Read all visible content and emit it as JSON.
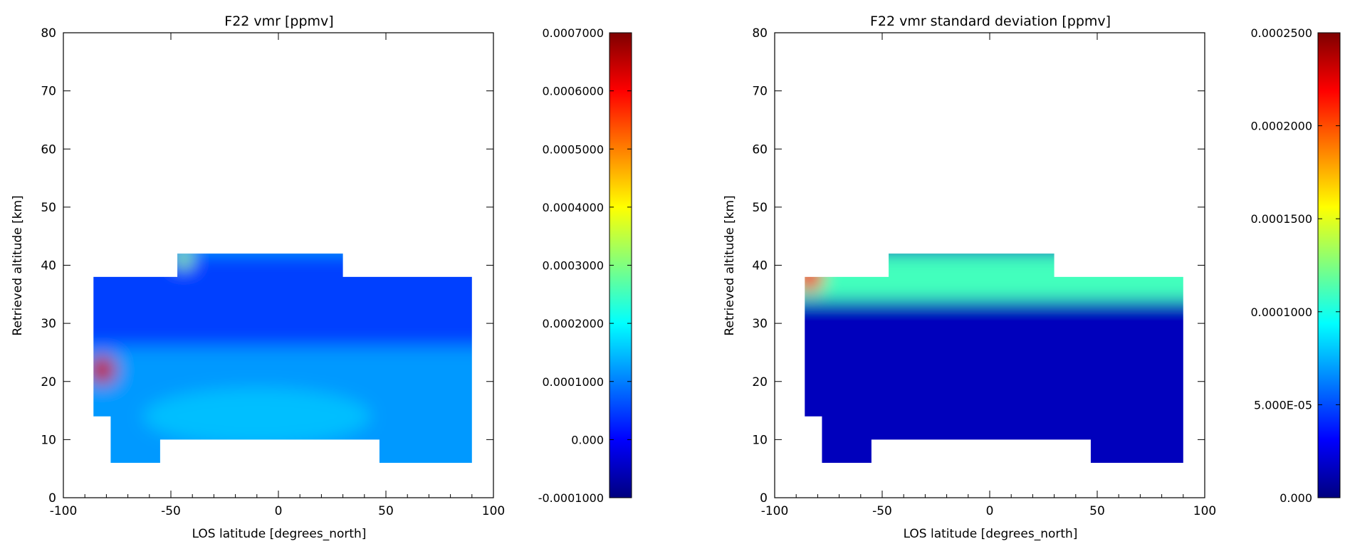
{
  "chart_data": [
    {
      "type": "heatmap",
      "title": "F22 vmr [ppmv]",
      "xlabel": "LOS latitude [degrees_north]",
      "ylabel": "Retrieved altitude [km]",
      "xlim": [
        -100,
        100
      ],
      "ylim": [
        0,
        80
      ],
      "x_ticks": [
        "-100",
        "-50",
        "0",
        "50",
        "100"
      ],
      "y_ticks": [
        "0",
        "10",
        "20",
        "30",
        "40",
        "50",
        "60",
        "70",
        "80"
      ],
      "colorbar": {
        "range": [
          -0.0001,
          0.0007
        ],
        "tick_values": [
          -0.0001,
          0.0,
          0.0001,
          0.0002,
          0.0003,
          0.0004,
          0.0005,
          0.0006,
          0.0007
        ],
        "tick_labels": [
          "-0.0001000",
          "0.000",
          "0.0001000",
          "0.0002000",
          "0.0003000",
          "0.0004000",
          "0.0005000",
          "0.0006000",
          "0.0007000"
        ]
      },
      "data_coverage": [
        {
          "lat_range": [
            -86,
            -78
          ],
          "alt_range": [
            14,
            38
          ]
        },
        {
          "lat_range": [
            -78,
            -55
          ],
          "alt_range": [
            6,
            38
          ]
        },
        {
          "lat_range": [
            -55,
            -47
          ],
          "alt_range": [
            10,
            38
          ]
        },
        {
          "lat_range": [
            -47,
            30
          ],
          "alt_range": [
            10,
            42
          ]
        },
        {
          "lat_range": [
            30,
            47
          ],
          "alt_range": [
            10,
            38
          ]
        },
        {
          "lat_range": [
            47,
            90
          ],
          "alt_range": [
            6,
            38
          ]
        }
      ],
      "features": [
        {
          "name": "background",
          "value": 0.00012
        },
        {
          "name": "upper-layer",
          "alt_range": [
            26,
            42
          ],
          "value": 5e-05
        },
        {
          "name": "lower-enhancement",
          "lat": -10,
          "alt": 14,
          "value": 0.00015
        },
        {
          "name": "hotspot",
          "lat": -82,
          "alt": 22,
          "value": 0.00065
        },
        {
          "name": "edge-high",
          "lat": -44,
          "alt": 41,
          "value": 0.00032
        }
      ]
    },
    {
      "type": "heatmap",
      "title": "F22 vmr standard deviation [ppmv]",
      "xlabel": "LOS latitude [degrees_north]",
      "ylabel": "Retrieved altitude [km]",
      "xlim": [
        -100,
        100
      ],
      "ylim": [
        0,
        80
      ],
      "x_ticks": [
        "-100",
        "-50",
        "0",
        "50",
        "100"
      ],
      "y_ticks": [
        "0",
        "10",
        "20",
        "30",
        "40",
        "50",
        "60",
        "70",
        "80"
      ],
      "colorbar": {
        "range": [
          0.0,
          0.00025
        ],
        "tick_values": [
          0.0,
          5e-05,
          0.0001,
          0.00015,
          0.0002,
          0.00025
        ],
        "tick_labels": [
          "0.000",
          "5.000E-05",
          "0.0001000",
          "0.0001500",
          "0.0002000",
          "0.0002500"
        ]
      },
      "data_coverage": [
        {
          "lat_range": [
            -86,
            -78
          ],
          "alt_range": [
            14,
            38
          ]
        },
        {
          "lat_range": [
            -78,
            -55
          ],
          "alt_range": [
            6,
            38
          ]
        },
        {
          "lat_range": [
            -55,
            -47
          ],
          "alt_range": [
            10,
            38
          ]
        },
        {
          "lat_range": [
            -47,
            30
          ],
          "alt_range": [
            10,
            42
          ]
        },
        {
          "lat_range": [
            30,
            47
          ],
          "alt_range": [
            10,
            38
          ]
        },
        {
          "lat_range": [
            47,
            90
          ],
          "alt_range": [
            6,
            38
          ]
        }
      ],
      "features": [
        {
          "name": "background",
          "value": 1.5e-05
        },
        {
          "name": "upper-layer",
          "alt_range": [
            34,
            42
          ],
          "value": 0.00011
        },
        {
          "name": "hotspot",
          "lat": -84,
          "alt": 38,
          "value": 0.00022
        }
      ]
    }
  ]
}
